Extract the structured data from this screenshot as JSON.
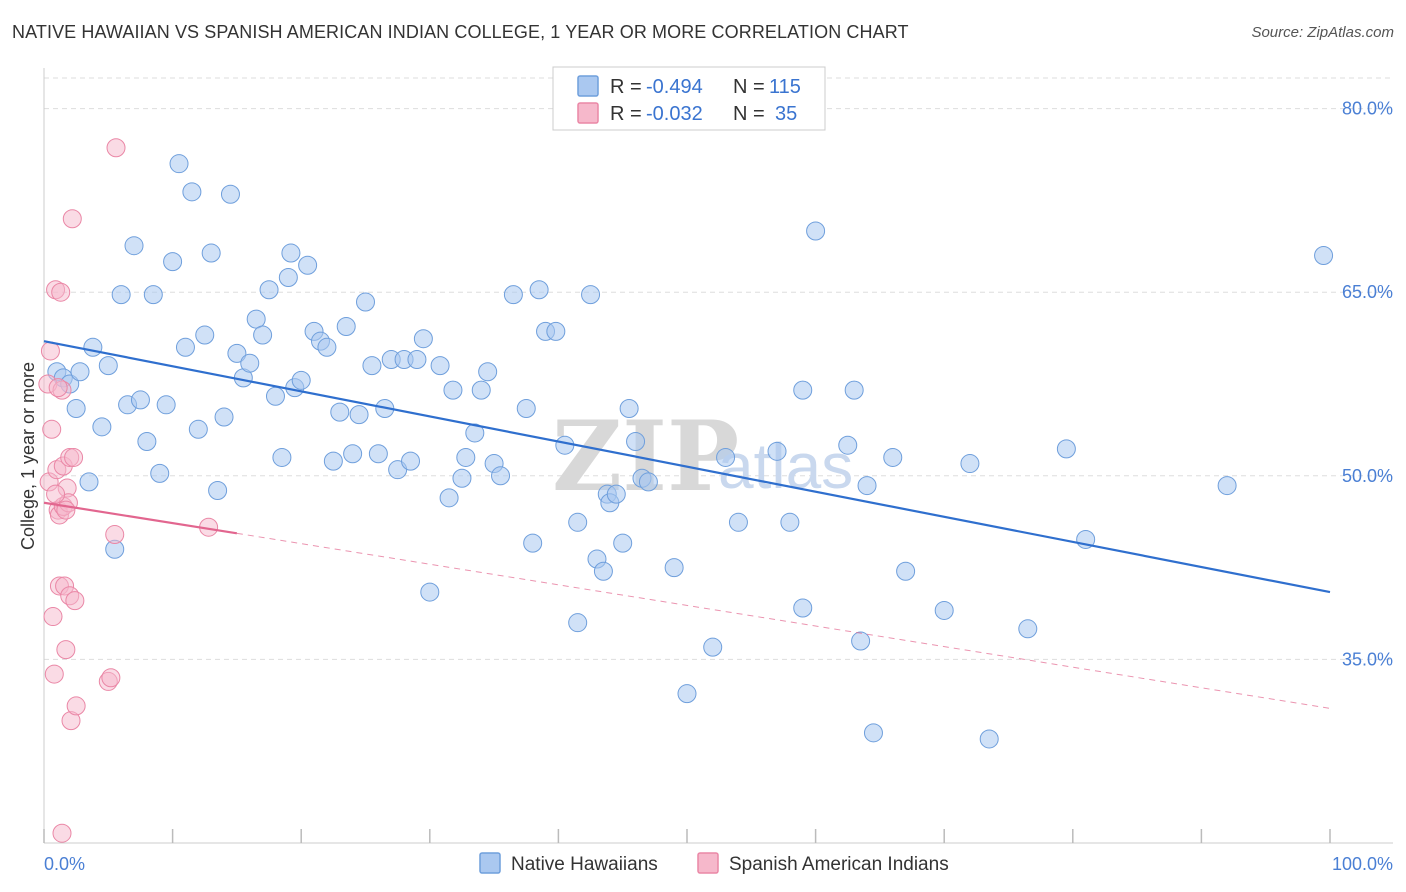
{
  "title": "NATIVE HAWAIIAN VS SPANISH AMERICAN INDIAN COLLEGE, 1 YEAR OR MORE CORRELATION CHART",
  "source": "Source: ZipAtlas.com",
  "watermark": {
    "zip": "ZIP",
    "atlas": "atlas"
  },
  "legend": {
    "rows": [
      {
        "r_label": "R =",
        "r_value": "-0.494",
        "n_label": "N =",
        "n_value": "115",
        "color": "#aac8f0"
      },
      {
        "r_label": "R =",
        "r_value": "-0.032",
        "n_label": "N =",
        "n_value": "35",
        "color": "#f6b8cb"
      }
    ]
  },
  "bottom_legend": [
    "Native Hawaiians",
    "Spanish American Indians"
  ],
  "colors": {
    "blue_fill": "#aac8f0",
    "blue_stroke": "#6f9fdc",
    "blue_line": "#2f6fce",
    "pink_fill": "#f6b8cb",
    "pink_stroke": "#ea87a6",
    "pink_line": "#e2668f",
    "grid": "#dddddd",
    "tick_text": "#4a7fd4"
  },
  "chart_data": {
    "type": "scatter",
    "title": "NATIVE HAWAIIAN VS SPANISH AMERICAN INDIAN COLLEGE, 1 YEAR OR MORE CORRELATION CHART",
    "xlabel": "",
    "ylabel": "College, 1 year or more",
    "xlim": [
      0,
      100
    ],
    "ylim": [
      20,
      82.5
    ],
    "x_tick_labels": [
      "0.0%",
      "100.0%"
    ],
    "y_ticks": [
      35,
      50,
      65,
      80
    ],
    "y_tick_labels": [
      "35.0%",
      "50.0%",
      "65.0%",
      "80.0%"
    ],
    "grid": "horizontal dashed",
    "legend_position": "top-center",
    "series": [
      {
        "name": "Native Hawaiians",
        "r": -0.494,
        "n": 115,
        "trend": {
          "x": [
            0,
            100
          ],
          "y": [
            61.0,
            40.5
          ],
          "style": "solid"
        },
        "points": [
          [
            1.0,
            58.5
          ],
          [
            1.5,
            58.0
          ],
          [
            2.0,
            57.5
          ],
          [
            2.5,
            55.5
          ],
          [
            2.8,
            58.5
          ],
          [
            3.5,
            49.5
          ],
          [
            3.8,
            60.5
          ],
          [
            4.5,
            54.0
          ],
          [
            5.0,
            59.0
          ],
          [
            5.5,
            44.0
          ],
          [
            6.0,
            64.8
          ],
          [
            6.5,
            55.8
          ],
          [
            7.0,
            68.8
          ],
          [
            7.5,
            56.2
          ],
          [
            8.0,
            52.8
          ],
          [
            8.5,
            64.8
          ],
          [
            9.0,
            50.2
          ],
          [
            9.5,
            55.8
          ],
          [
            10.0,
            67.5
          ],
          [
            10.5,
            75.5
          ],
          [
            11.0,
            60.5
          ],
          [
            11.5,
            73.2
          ],
          [
            12.0,
            53.8
          ],
          [
            12.5,
            61.5
          ],
          [
            13.0,
            68.2
          ],
          [
            13.5,
            48.8
          ],
          [
            14.0,
            54.8
          ],
          [
            14.5,
            73.0
          ],
          [
            15.0,
            60.0
          ],
          [
            15.5,
            58.0
          ],
          [
            16.0,
            59.2
          ],
          [
            16.5,
            62.8
          ],
          [
            17.0,
            61.5
          ],
          [
            17.5,
            65.2
          ],
          [
            18.0,
            56.5
          ],
          [
            18.5,
            51.5
          ],
          [
            19.0,
            66.2
          ],
          [
            19.2,
            68.2
          ],
          [
            19.5,
            57.2
          ],
          [
            20.0,
            57.8
          ],
          [
            20.5,
            67.2
          ],
          [
            21.0,
            61.8
          ],
          [
            21.5,
            61.0
          ],
          [
            22.0,
            60.5
          ],
          [
            22.5,
            51.2
          ],
          [
            23.0,
            55.2
          ],
          [
            23.5,
            62.2
          ],
          [
            24.0,
            51.8
          ],
          [
            24.5,
            55.0
          ],
          [
            25.0,
            64.2
          ],
          [
            25.5,
            59.0
          ],
          [
            26.0,
            51.8
          ],
          [
            26.5,
            55.5
          ],
          [
            27.0,
            59.5
          ],
          [
            27.5,
            50.5
          ],
          [
            28.0,
            59.5
          ],
          [
            28.5,
            51.2
          ],
          [
            29.0,
            59.5
          ],
          [
            29.5,
            61.2
          ],
          [
            30.0,
            40.5
          ],
          [
            30.8,
            59.0
          ],
          [
            31.5,
            48.2
          ],
          [
            31.8,
            57.0
          ],
          [
            32.5,
            49.8
          ],
          [
            32.8,
            51.5
          ],
          [
            33.5,
            53.5
          ],
          [
            34.0,
            57.0
          ],
          [
            34.5,
            58.5
          ],
          [
            35.0,
            51.0
          ],
          [
            35.5,
            50.0
          ],
          [
            36.5,
            64.8
          ],
          [
            37.5,
            55.5
          ],
          [
            38.0,
            44.5
          ],
          [
            38.5,
            65.2
          ],
          [
            39.0,
            61.8
          ],
          [
            39.8,
            61.8
          ],
          [
            40.5,
            52.5
          ],
          [
            41.5,
            46.2
          ],
          [
            41.5,
            38.0
          ],
          [
            42.5,
            64.8
          ],
          [
            43.0,
            43.2
          ],
          [
            43.5,
            42.2
          ],
          [
            43.8,
            48.5
          ],
          [
            44.0,
            47.8
          ],
          [
            44.5,
            48.5
          ],
          [
            45.0,
            44.5
          ],
          [
            45.5,
            55.5
          ],
          [
            46.0,
            52.8
          ],
          [
            46.5,
            49.8
          ],
          [
            47.0,
            49.5
          ],
          [
            49.0,
            42.5
          ],
          [
            50.0,
            32.2
          ],
          [
            52.0,
            36.0
          ],
          [
            53.0,
            51.5
          ],
          [
            54.0,
            46.2
          ],
          [
            57.0,
            52.0
          ],
          [
            58.0,
            46.2
          ],
          [
            59.0,
            39.2
          ],
          [
            59.0,
            57.0
          ],
          [
            60.0,
            70.0
          ],
          [
            62.5,
            52.5
          ],
          [
            63.0,
            57.0
          ],
          [
            63.5,
            36.5
          ],
          [
            64.0,
            49.2
          ],
          [
            64.5,
            29.0
          ],
          [
            66.0,
            51.5
          ],
          [
            67.0,
            42.2
          ],
          [
            70.0,
            39.0
          ],
          [
            73.5,
            28.5
          ],
          [
            76.5,
            37.5
          ],
          [
            79.5,
            52.2
          ],
          [
            81.0,
            44.8
          ],
          [
            92.0,
            49.2
          ],
          [
            99.5,
            68.0
          ],
          [
            72.0,
            51.0
          ]
        ]
      },
      {
        "name": "Spanish American Indians",
        "r": -0.032,
        "n": 35,
        "trend": {
          "x": [
            0,
            15
          ],
          "y": [
            47.8,
            45.3
          ],
          "x_dashed": [
            15,
            100
          ],
          "y_dashed": [
            45.3,
            31.0
          ],
          "style": "solid then dashed"
        },
        "points": [
          [
            0.3,
            57.5
          ],
          [
            0.4,
            49.5
          ],
          [
            0.5,
            60.2
          ],
          [
            0.6,
            53.8
          ],
          [
            0.7,
            38.5
          ],
          [
            0.8,
            33.8
          ],
          [
            0.9,
            65.2
          ],
          [
            1.0,
            50.5
          ],
          [
            1.1,
            47.2
          ],
          [
            1.2,
            46.8
          ],
          [
            1.2,
            41.0
          ],
          [
            1.3,
            65.0
          ],
          [
            1.4,
            57.0
          ],
          [
            1.5,
            50.8
          ],
          [
            1.5,
            47.5
          ],
          [
            1.6,
            41.0
          ],
          [
            1.7,
            35.8
          ],
          [
            1.8,
            49.0
          ],
          [
            1.9,
            47.8
          ],
          [
            2.0,
            51.5
          ],
          [
            2.0,
            40.2
          ],
          [
            2.1,
            30.0
          ],
          [
            2.2,
            71.0
          ],
          [
            2.3,
            51.5
          ],
          [
            2.4,
            39.8
          ],
          [
            2.5,
            31.2
          ],
          [
            5.0,
            33.2
          ],
          [
            5.2,
            33.5
          ],
          [
            5.5,
            45.2
          ],
          [
            5.6,
            76.8
          ],
          [
            12.8,
            45.8
          ],
          [
            1.4,
            20.8
          ],
          [
            0.9,
            48.5
          ],
          [
            1.1,
            57.2
          ],
          [
            1.7,
            47.2
          ]
        ]
      }
    ]
  }
}
